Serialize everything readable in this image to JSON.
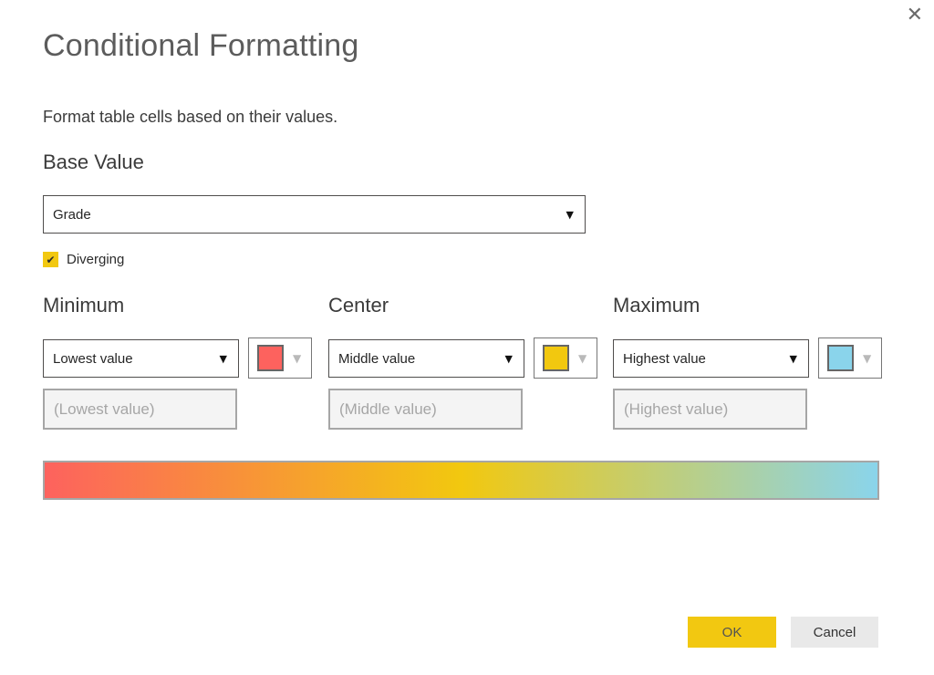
{
  "dialog": {
    "title": "Conditional Formatting",
    "subtitle": "Format table cells based on their values."
  },
  "icons": {
    "close": "✕",
    "dropdown_arrow": "▼",
    "caret_down": "▼",
    "check": "✔"
  },
  "base_value": {
    "label": "Base Value",
    "selected": "Grade"
  },
  "diverging": {
    "label": "Diverging",
    "checked": true
  },
  "sections": [
    {
      "heading": "Minimum",
      "dropdown_value": "Lowest value",
      "placeholder": "(Lowest value)",
      "swatch_color": "#FD625E"
    },
    {
      "heading": "Center",
      "dropdown_value": "Middle value",
      "placeholder": "(Middle value)",
      "swatch_color": "#F2C80F"
    },
    {
      "heading": "Maximum",
      "dropdown_value": "Highest value",
      "placeholder": "(Highest value)",
      "swatch_color": "#8AD4EB"
    }
  ],
  "gradient": {
    "start": "#FD625E",
    "middle": "#F2C80F",
    "end": "#8AD4EB"
  },
  "buttons": {
    "ok": "OK",
    "cancel": "Cancel"
  },
  "colors": {
    "accent_yellow": "#F2C811"
  }
}
